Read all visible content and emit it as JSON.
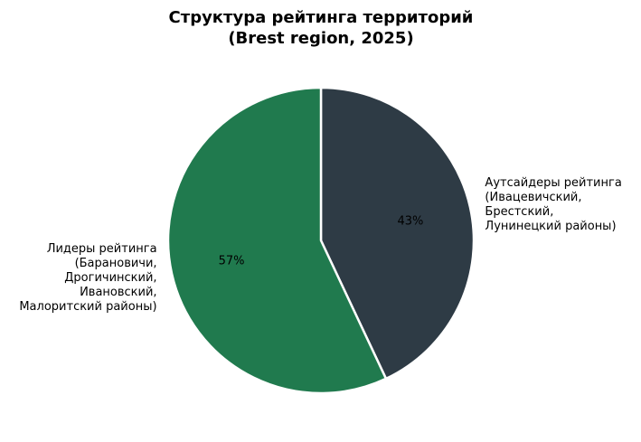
{
  "chart_data": {
    "type": "pie",
    "title": [
      "Структура рейтинга территорий",
      "(Brest region, 2025)"
    ],
    "categories": [
      "Аутсайдеры рейтинга (Ивацевичский, Брестский, Лунинецкий районы)",
      "Лидеры рейтинга (Барановичи, Дрогичинский, Ивановский, Малоритский районы)"
    ],
    "values": [
      43,
      57
    ],
    "value_labels": [
      "43%",
      "57%"
    ],
    "label_lines": [
      [
        "Аутсайдеры рейтинга",
        "(Ивацевичский,",
        "Брестский,",
        "Лунинецкий районы)"
      ],
      [
        "Лидеры рейтинга",
        "(Барановичи,",
        "Дрогичинский,",
        "Ивановский,",
        "Малоритский районы)"
      ]
    ],
    "colors": [
      "#2e3b45",
      "#207a4e"
    ],
    "edge_color": "#ffffff",
    "start_angle": "12 o'clock, clockwise"
  }
}
